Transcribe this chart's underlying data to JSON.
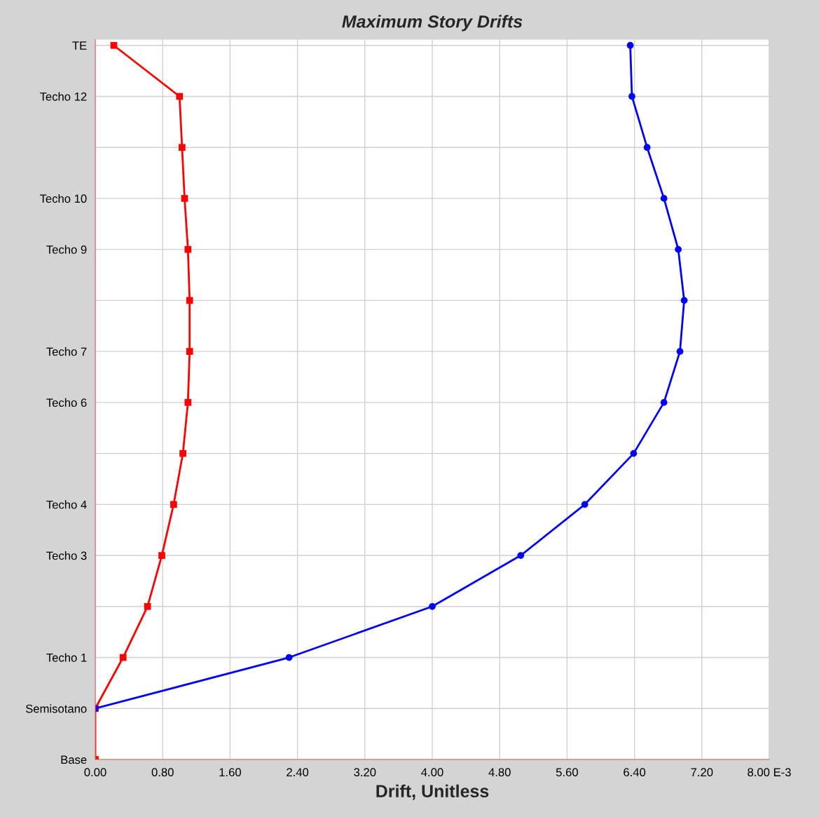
{
  "chart_data": {
    "type": "line",
    "orientation": "horizontal",
    "title": "Maximum Story Drifts",
    "xlabel": "Drift, Unitless",
    "xlim": [
      0,
      8
    ],
    "xticks": [
      {
        "value": 0,
        "label": "0.00"
      },
      {
        "value": 0.8,
        "label": "0.80"
      },
      {
        "value": 1.6,
        "label": "1.60"
      },
      {
        "value": 2.4,
        "label": "2.40"
      },
      {
        "value": 3.2,
        "label": "3.20"
      },
      {
        "value": 4.0,
        "label": "4.00"
      },
      {
        "value": 4.8,
        "label": "4.80"
      },
      {
        "value": 5.6,
        "label": "5.60"
      },
      {
        "value": 6.4,
        "label": "6.40"
      },
      {
        "value": 7.2,
        "label": "7.20"
      },
      {
        "value": 8.0,
        "label": "8.00 E-3"
      }
    ],
    "categories": [
      "TE",
      "Techo 12",
      null,
      "Techo 10",
      "Techo 9",
      null,
      "Techo 7",
      "Techo 6",
      null,
      "Techo 4",
      "Techo 3",
      null,
      "Techo 1",
      "Semisotano",
      "Base"
    ],
    "grid": true,
    "series": [
      {
        "color": "#ff0000",
        "marker": "square",
        "values": [
          0.22,
          1.0,
          1.03,
          1.06,
          1.1,
          1.12,
          1.12,
          1.1,
          1.04,
          0.93,
          0.79,
          0.62,
          0.33,
          0,
          0
        ]
      },
      {
        "color": "#0000ff",
        "marker": "circle",
        "values": [
          6.35,
          6.37,
          6.55,
          6.75,
          6.92,
          6.99,
          6.94,
          6.75,
          6.39,
          5.81,
          5.05,
          4.0,
          2.3,
          0,
          null
        ]
      }
    ]
  }
}
